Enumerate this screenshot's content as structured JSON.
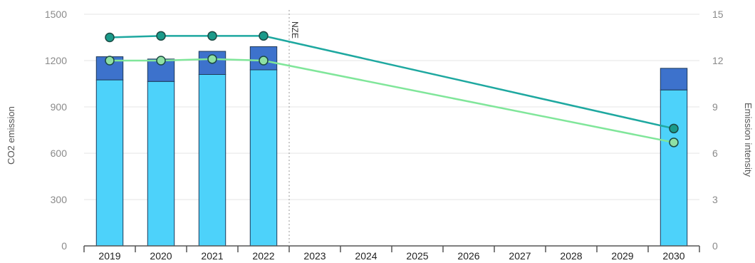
{
  "chart_data": {
    "type": "bar",
    "categories": [
      "2019",
      "2020",
      "2021",
      "2022",
      "2023",
      "2024",
      "2025",
      "2026",
      "2027",
      "2028",
      "2029",
      "2030"
    ],
    "series": [
      {
        "kind": "bar-stack-bottom",
        "axis": "left",
        "color": "#4dd2fa",
        "values": [
          1075,
          1065,
          1110,
          1140,
          null,
          null,
          null,
          null,
          null,
          null,
          null,
          1010
        ]
      },
      {
        "kind": "bar-stack-top",
        "axis": "left",
        "color": "#3d72cc",
        "values": [
          150,
          145,
          150,
          150,
          null,
          null,
          null,
          null,
          null,
          null,
          null,
          140
        ]
      },
      {
        "kind": "line",
        "axis": "right",
        "color": "#1ea8a0",
        "marker_fill": "#1a9a8a",
        "values": [
          13.5,
          13.6,
          13.6,
          13.6,
          null,
          null,
          null,
          null,
          null,
          null,
          null,
          7.6
        ]
      },
      {
        "kind": "line",
        "axis": "right",
        "color": "#80e69a",
        "marker_fill": "#8ee0a4",
        "values": [
          12.0,
          12.0,
          12.1,
          12.0,
          null,
          null,
          null,
          null,
          null,
          null,
          null,
          6.7
        ]
      }
    ],
    "ylabel": "CO2 emission",
    "ylabel_right": "Emission intensity",
    "ylim": [
      0,
      1500
    ],
    "yticks": [
      0,
      300,
      600,
      900,
      1200,
      1500
    ],
    "ylim_right": [
      0,
      15
    ],
    "yticks_right": [
      0,
      3,
      6,
      9,
      12,
      15
    ],
    "reference_line": {
      "after_category": "2022",
      "label": "NZE"
    },
    "grid": true
  }
}
